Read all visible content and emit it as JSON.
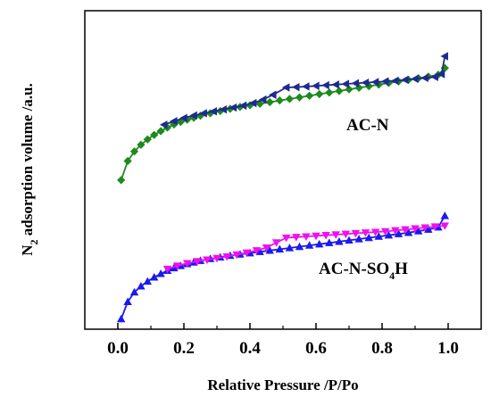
{
  "chart_data": {
    "type": "line",
    "xlabel": "Relative Pressure /P/Po",
    "ylabel_main": "N",
    "ylabel_sub": "2",
    "ylabel_rest": " adsorption volume /a.u.",
    "xlim": [
      -0.1,
      1.1
    ],
    "ylim": [
      0,
      100
    ],
    "x_ticks": [
      "0.0",
      "0.2",
      "0.4",
      "0.6",
      "0.8",
      "1.0"
    ],
    "y_ticks_shown": false,
    "grid": false,
    "annotations": [
      {
        "id": "ac-n",
        "text": "AC-N",
        "x": 0.7,
        "y": 58.5
      },
      {
        "id": "ac-n-so4h",
        "text_main": "AC-N-SO",
        "text_sub": "4",
        "text_end": "H",
        "x": 0.62,
        "y": 17.5
      }
    ],
    "series": [
      {
        "label": "AC-N adsorption",
        "color": "#1e8a1e",
        "marker": "diamond",
        "x": [
          0.01,
          0.03,
          0.05,
          0.07,
          0.09,
          0.11,
          0.13,
          0.15,
          0.17,
          0.19,
          0.21,
          0.23,
          0.25,
          0.28,
          0.31,
          0.34,
          0.37,
          0.4,
          0.43,
          0.46,
          0.49,
          0.52,
          0.55,
          0.58,
          0.61,
          0.64,
          0.67,
          0.7,
          0.73,
          0.76,
          0.79,
          0.82,
          0.85,
          0.88,
          0.91,
          0.94,
          0.97,
          0.99
        ],
        "y": [
          46.8,
          52.8,
          55.8,
          57.9,
          59.6,
          61.0,
          62.2,
          63.3,
          64.3,
          65.1,
          65.8,
          66.4,
          67.0,
          67.8,
          68.5,
          69.2,
          69.8,
          70.3,
          70.8,
          71.3,
          71.8,
          72.3,
          72.8,
          73.3,
          73.8,
          74.3,
          74.8,
          75.3,
          75.8,
          76.3,
          76.8,
          77.3,
          77.8,
          78.3,
          78.8,
          79.3,
          79.9,
          82.0
        ]
      },
      {
        "label": "AC-N desorption",
        "color": "#1f2a8f",
        "marker": "triangle-left",
        "x": [
          0.99,
          0.98,
          0.96,
          0.93,
          0.9,
          0.87,
          0.84,
          0.81,
          0.78,
          0.75,
          0.72,
          0.69,
          0.66,
          0.63,
          0.6,
          0.57,
          0.54,
          0.51,
          0.47,
          0.44,
          0.41,
          0.38,
          0.35,
          0.32,
          0.29,
          0.26,
          0.23,
          0.2,
          0.17,
          0.14
        ],
        "y": [
          85.7,
          80.1,
          79.2,
          78.9,
          78.6,
          78.3,
          78.0,
          77.8,
          77.6,
          77.4,
          77.2,
          77.0,
          76.8,
          76.6,
          76.4,
          76.2,
          76.0,
          75.9,
          73.6,
          72.1,
          71.0,
          70.2,
          69.6,
          69.0,
          68.4,
          67.8,
          67.1,
          66.3,
          65.3,
          64.2
        ]
      },
      {
        "label": "AC-N-SO4H adsorption",
        "color": "#1a1aee",
        "marker": "triangle-up",
        "x": [
          0.01,
          0.03,
          0.05,
          0.07,
          0.09,
          0.11,
          0.13,
          0.15,
          0.17,
          0.19,
          0.21,
          0.23,
          0.25,
          0.28,
          0.31,
          0.34,
          0.37,
          0.4,
          0.43,
          0.46,
          0.49,
          0.52,
          0.55,
          0.58,
          0.61,
          0.64,
          0.67,
          0.7,
          0.73,
          0.76,
          0.79,
          0.82,
          0.85,
          0.88,
          0.91,
          0.94,
          0.97,
          0.99
        ],
        "y": [
          3.2,
          8.6,
          11.6,
          13.5,
          15.0,
          16.3,
          17.4,
          18.4,
          19.2,
          19.9,
          20.5,
          21.0,
          21.5,
          22.1,
          22.6,
          23.1,
          23.5,
          23.9,
          24.3,
          24.7,
          25.1,
          25.5,
          25.9,
          26.3,
          26.7,
          27.1,
          27.5,
          27.9,
          28.3,
          28.7,
          29.1,
          29.5,
          29.9,
          30.3,
          30.8,
          31.3,
          32.0,
          35.6
        ]
      },
      {
        "label": "AC-N-SO4H desorption",
        "color": "#ee11ee",
        "marker": "triangle-down",
        "x": [
          0.99,
          0.96,
          0.93,
          0.9,
          0.87,
          0.84,
          0.81,
          0.78,
          0.75,
          0.72,
          0.69,
          0.66,
          0.63,
          0.6,
          0.57,
          0.54,
          0.51,
          0.48,
          0.45,
          0.42,
          0.39,
          0.36,
          0.33,
          0.3,
          0.27,
          0.24,
          0.21,
          0.18,
          0.15
        ],
        "y": [
          32.5,
          32.2,
          31.9,
          31.6,
          31.3,
          31.0,
          30.7,
          30.5,
          30.3,
          30.1,
          29.9,
          29.7,
          29.5,
          29.3,
          29.1,
          28.9,
          28.7,
          27.2,
          25.6,
          24.7,
          24.0,
          23.4,
          22.8,
          22.3,
          21.8,
          21.3,
          20.7,
          19.9,
          18.9
        ]
      }
    ]
  }
}
